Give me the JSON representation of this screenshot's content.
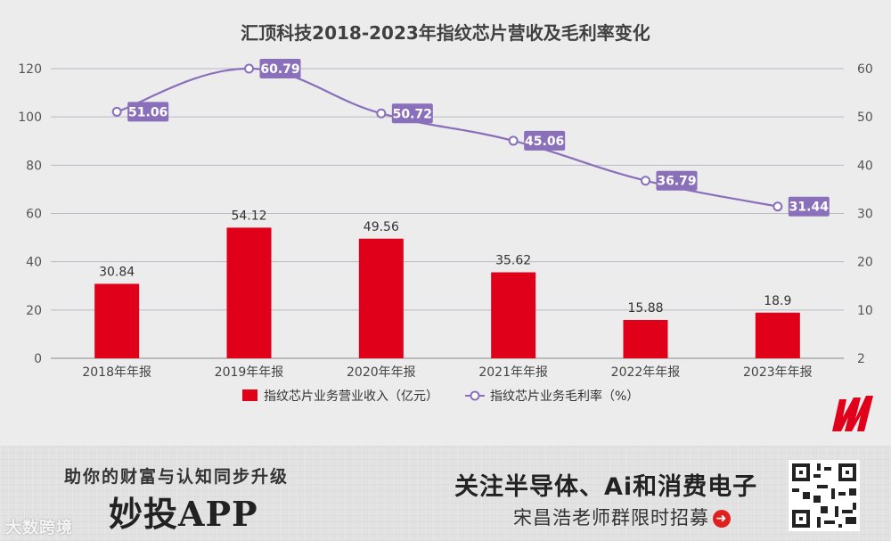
{
  "chart_data": {
    "type": "bar",
    "title": "汇顶科技2018-2023年指纹芯片营收及毛利率变化",
    "categories": [
      "2018年年报",
      "2019年年报",
      "2020年年报",
      "2021年年报",
      "2022年年报",
      "2023年年报"
    ],
    "series": [
      {
        "name": "指纹芯片业务营业收入（亿元）",
        "type": "bar",
        "axis": "left",
        "color": "#e0001a",
        "values": [
          30.84,
          54.12,
          49.56,
          35.62,
          15.88,
          18.9
        ]
      },
      {
        "name": "指纹芯片业务毛利率（%）",
        "type": "line",
        "axis": "right",
        "color": "#8a6fba",
        "values": [
          51.06,
          60.79,
          50.72,
          45.06,
          36.79,
          31.44
        ]
      }
    ],
    "y_left": {
      "ticks": [
        0,
        20,
        40,
        60,
        80,
        100,
        120
      ],
      "ylim": [
        0,
        120
      ]
    },
    "y_right": {
      "ticks": [
        2,
        10,
        20,
        30,
        40,
        50,
        60
      ],
      "ylim": [
        2,
        60
      ]
    },
    "grid": true,
    "legend_position": "bottom"
  },
  "banner": {
    "slogan": "助你的财富与认知同步升级",
    "app_name": "妙投APP",
    "headline": "关注半导体、Ai和消费电子",
    "recruit": "宋昌浩老师群限时招募",
    "watermark": "大数跨境"
  }
}
